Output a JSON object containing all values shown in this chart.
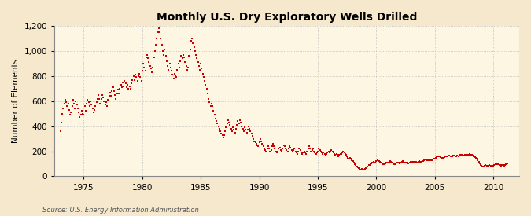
{
  "title": "Monthly U.S. Dry Exploratory Wells Drilled",
  "ylabel": "Number of Elements",
  "source": "Source: U.S. Energy Information Administration",
  "bg_color": "#f5e8cc",
  "plot_bg_color": "#fdf6e3",
  "dot_color": "#cc0000",
  "ylim": [
    0,
    1200
  ],
  "yticks": [
    0,
    200,
    400,
    600,
    800,
    1000,
    1200
  ],
  "xlim_start": 1972.5,
  "xlim_end": 2012.2,
  "xticks": [
    1975,
    1980,
    1985,
    1990,
    1995,
    2000,
    2005,
    2010
  ],
  "data": [
    [
      1973.0,
      360
    ],
    [
      1973.083,
      430
    ],
    [
      1973.167,
      500
    ],
    [
      1973.25,
      540
    ],
    [
      1973.333,
      580
    ],
    [
      1973.417,
      610
    ],
    [
      1973.5,
      590
    ],
    [
      1973.583,
      560
    ],
    [
      1973.667,
      580
    ],
    [
      1973.75,
      530
    ],
    [
      1973.833,
      490
    ],
    [
      1973.917,
      510
    ],
    [
      1974.0,
      560
    ],
    [
      1974.083,
      610
    ],
    [
      1974.167,
      580
    ],
    [
      1974.25,
      540
    ],
    [
      1974.333,
      600
    ],
    [
      1974.417,
      570
    ],
    [
      1974.5,
      540
    ],
    [
      1974.583,
      510
    ],
    [
      1974.667,
      470
    ],
    [
      1974.75,
      490
    ],
    [
      1974.833,
      520
    ],
    [
      1974.917,
      500
    ],
    [
      1975.0,
      490
    ],
    [
      1975.083,
      560
    ],
    [
      1975.167,
      520
    ],
    [
      1975.25,
      580
    ],
    [
      1975.333,
      610
    ],
    [
      1975.417,
      590
    ],
    [
      1975.5,
      560
    ],
    [
      1975.583,
      600
    ],
    [
      1975.667,
      570
    ],
    [
      1975.75,
      540
    ],
    [
      1975.833,
      510
    ],
    [
      1975.917,
      530
    ],
    [
      1976.0,
      560
    ],
    [
      1976.083,
      590
    ],
    [
      1976.167,
      620
    ],
    [
      1976.25,
      650
    ],
    [
      1976.333,
      620
    ],
    [
      1976.417,
      580
    ],
    [
      1976.5,
      620
    ],
    [
      1976.583,
      650
    ],
    [
      1976.667,
      630
    ],
    [
      1976.75,
      600
    ],
    [
      1976.833,
      570
    ],
    [
      1976.917,
      590
    ],
    [
      1977.0,
      560
    ],
    [
      1977.083,
      610
    ],
    [
      1977.167,
      640
    ],
    [
      1977.25,
      670
    ],
    [
      1977.333,
      640
    ],
    [
      1977.417,
      680
    ],
    [
      1977.5,
      710
    ],
    [
      1977.583,
      680
    ],
    [
      1977.667,
      650
    ],
    [
      1977.75,
      620
    ],
    [
      1977.833,
      660
    ],
    [
      1977.917,
      690
    ],
    [
      1978.0,
      660
    ],
    [
      1978.083,
      700
    ],
    [
      1978.167,
      730
    ],
    [
      1978.25,
      710
    ],
    [
      1978.333,
      750
    ],
    [
      1978.417,
      720
    ],
    [
      1978.5,
      760
    ],
    [
      1978.583,
      740
    ],
    [
      1978.667,
      710
    ],
    [
      1978.75,
      730
    ],
    [
      1978.833,
      700
    ],
    [
      1978.917,
      720
    ],
    [
      1979.0,
      700
    ],
    [
      1979.083,
      740
    ],
    [
      1979.167,
      770
    ],
    [
      1979.25,
      800
    ],
    [
      1979.333,
      770
    ],
    [
      1979.417,
      810
    ],
    [
      1979.5,
      790
    ],
    [
      1979.583,
      760
    ],
    [
      1979.667,
      800
    ],
    [
      1979.75,
      820
    ],
    [
      1979.833,
      790
    ],
    [
      1979.917,
      760
    ],
    [
      1980.0,
      840
    ],
    [
      1980.083,
      900
    ],
    [
      1980.167,
      870
    ],
    [
      1980.25,
      840
    ],
    [
      1980.333,
      950
    ],
    [
      1980.417,
      970
    ],
    [
      1980.5,
      940
    ],
    [
      1980.583,
      910
    ],
    [
      1980.667,
      880
    ],
    [
      1980.75,
      860
    ],
    [
      1980.833,
      830
    ],
    [
      1980.917,
      870
    ],
    [
      1981.0,
      950
    ],
    [
      1981.083,
      1000
    ],
    [
      1981.167,
      1050
    ],
    [
      1981.25,
      1100
    ],
    [
      1981.333,
      1150
    ],
    [
      1981.417,
      1180
    ],
    [
      1981.5,
      1150
    ],
    [
      1981.583,
      1100
    ],
    [
      1981.667,
      1050
    ],
    [
      1981.75,
      1000
    ],
    [
      1981.833,
      970
    ],
    [
      1981.917,
      1010
    ],
    [
      1982.0,
      960
    ],
    [
      1982.083,
      920
    ],
    [
      1982.167,
      880
    ],
    [
      1982.25,
      850
    ],
    [
      1982.333,
      900
    ],
    [
      1982.417,
      870
    ],
    [
      1982.5,
      840
    ],
    [
      1982.583,
      810
    ],
    [
      1982.667,
      780
    ],
    [
      1982.75,
      820
    ],
    [
      1982.833,
      800
    ],
    [
      1982.917,
      790
    ],
    [
      1983.0,
      850
    ],
    [
      1983.083,
      900
    ],
    [
      1983.167,
      870
    ],
    [
      1983.25,
      920
    ],
    [
      1983.333,
      960
    ],
    [
      1983.417,
      940
    ],
    [
      1983.5,
      970
    ],
    [
      1983.583,
      950
    ],
    [
      1983.667,
      910
    ],
    [
      1983.75,
      880
    ],
    [
      1983.833,
      850
    ],
    [
      1983.917,
      870
    ],
    [
      1984.0,
      960
    ],
    [
      1984.083,
      1010
    ],
    [
      1984.167,
      1080
    ],
    [
      1984.25,
      1100
    ],
    [
      1984.333,
      1060
    ],
    [
      1984.417,
      1030
    ],
    [
      1984.5,
      1000
    ],
    [
      1984.583,
      970
    ],
    [
      1984.667,
      940
    ],
    [
      1984.75,
      910
    ],
    [
      1984.833,
      880
    ],
    [
      1984.917,
      850
    ],
    [
      1985.0,
      900
    ],
    [
      1985.083,
      860
    ],
    [
      1985.167,
      820
    ],
    [
      1985.25,
      790
    ],
    [
      1985.333,
      760
    ],
    [
      1985.417,
      730
    ],
    [
      1985.5,
      700
    ],
    [
      1985.583,
      660
    ],
    [
      1985.667,
      620
    ],
    [
      1985.75,
      590
    ],
    [
      1985.833,
      560
    ],
    [
      1985.917,
      580
    ],
    [
      1986.0,
      560
    ],
    [
      1986.083,
      520
    ],
    [
      1986.167,
      490
    ],
    [
      1986.25,
      460
    ],
    [
      1986.333,
      440
    ],
    [
      1986.417,
      420
    ],
    [
      1986.5,
      400
    ],
    [
      1986.583,
      380
    ],
    [
      1986.667,
      360
    ],
    [
      1986.75,
      340
    ],
    [
      1986.833,
      330
    ],
    [
      1986.917,
      310
    ],
    [
      1987.0,
      330
    ],
    [
      1987.083,
      360
    ],
    [
      1987.167,
      390
    ],
    [
      1987.25,
      420
    ],
    [
      1987.333,
      450
    ],
    [
      1987.417,
      430
    ],
    [
      1987.5,
      410
    ],
    [
      1987.583,
      380
    ],
    [
      1987.667,
      360
    ],
    [
      1987.75,
      390
    ],
    [
      1987.833,
      370
    ],
    [
      1987.917,
      350
    ],
    [
      1988.0,
      380
    ],
    [
      1988.083,
      410
    ],
    [
      1988.167,
      440
    ],
    [
      1988.25,
      420
    ],
    [
      1988.333,
      450
    ],
    [
      1988.417,
      430
    ],
    [
      1988.5,
      400
    ],
    [
      1988.583,
      380
    ],
    [
      1988.667,
      360
    ],
    [
      1988.75,
      390
    ],
    [
      1988.833,
      370
    ],
    [
      1988.917,
      350
    ],
    [
      1989.0,
      370
    ],
    [
      1989.083,
      400
    ],
    [
      1989.167,
      380
    ],
    [
      1989.25,
      360
    ],
    [
      1989.333,
      340
    ],
    [
      1989.417,
      320
    ],
    [
      1989.5,
      300
    ],
    [
      1989.583,
      280
    ],
    [
      1989.667,
      270
    ],
    [
      1989.75,
      260
    ],
    [
      1989.833,
      250
    ],
    [
      1989.917,
      240
    ],
    [
      1990.0,
      270
    ],
    [
      1990.083,
      300
    ],
    [
      1990.167,
      280
    ],
    [
      1990.25,
      260
    ],
    [
      1990.333,
      240
    ],
    [
      1990.417,
      220
    ],
    [
      1990.5,
      210
    ],
    [
      1990.583,
      200
    ],
    [
      1990.667,
      220
    ],
    [
      1990.75,
      240
    ],
    [
      1990.833,
      220
    ],
    [
      1990.917,
      200
    ],
    [
      1991.0,
      210
    ],
    [
      1991.083,
      240
    ],
    [
      1991.167,
      260
    ],
    [
      1991.25,
      240
    ],
    [
      1991.333,
      220
    ],
    [
      1991.417,
      200
    ],
    [
      1991.5,
      190
    ],
    [
      1991.583,
      200
    ],
    [
      1991.667,
      220
    ],
    [
      1991.75,
      230
    ],
    [
      1991.833,
      210
    ],
    [
      1991.917,
      200
    ],
    [
      1992.0,
      220
    ],
    [
      1992.083,
      250
    ],
    [
      1992.167,
      240
    ],
    [
      1992.25,
      220
    ],
    [
      1992.333,
      210
    ],
    [
      1992.417,
      200
    ],
    [
      1992.5,
      220
    ],
    [
      1992.583,
      240
    ],
    [
      1992.667,
      230
    ],
    [
      1992.75,
      210
    ],
    [
      1992.833,
      200
    ],
    [
      1992.917,
      210
    ],
    [
      1993.0,
      220
    ],
    [
      1993.083,
      200
    ],
    [
      1993.167,
      190
    ],
    [
      1993.25,
      180
    ],
    [
      1993.333,
      200
    ],
    [
      1993.417,
      220
    ],
    [
      1993.5,
      210
    ],
    [
      1993.583,
      190
    ],
    [
      1993.667,
      180
    ],
    [
      1993.75,
      190
    ],
    [
      1993.833,
      200
    ],
    [
      1993.917,
      190
    ],
    [
      1994.0,
      180
    ],
    [
      1994.083,
      200
    ],
    [
      1994.167,
      220
    ],
    [
      1994.25,
      240
    ],
    [
      1994.333,
      220
    ],
    [
      1994.417,
      200
    ],
    [
      1994.5,
      210
    ],
    [
      1994.583,
      220
    ],
    [
      1994.667,
      200
    ],
    [
      1994.75,
      190
    ],
    [
      1994.833,
      180
    ],
    [
      1994.917,
      190
    ],
    [
      1995.0,
      200
    ],
    [
      1995.083,
      220
    ],
    [
      1995.167,
      210
    ],
    [
      1995.25,
      200
    ],
    [
      1995.333,
      190
    ],
    [
      1995.417,
      180
    ],
    [
      1995.5,
      190
    ],
    [
      1995.583,
      180
    ],
    [
      1995.667,
      170
    ],
    [
      1995.75,
      180
    ],
    [
      1995.833,
      190
    ],
    [
      1995.917,
      200
    ],
    [
      1996.0,
      190
    ],
    [
      1996.083,
      200
    ],
    [
      1996.167,
      210
    ],
    [
      1996.25,
      200
    ],
    [
      1996.333,
      190
    ],
    [
      1996.417,
      180
    ],
    [
      1996.5,
      170
    ],
    [
      1996.583,
      180
    ],
    [
      1996.667,
      170
    ],
    [
      1996.75,
      160
    ],
    [
      1996.833,
      170
    ],
    [
      1996.917,
      180
    ],
    [
      1997.0,
      180
    ],
    [
      1997.083,
      190
    ],
    [
      1997.167,
      200
    ],
    [
      1997.25,
      190
    ],
    [
      1997.333,
      180
    ],
    [
      1997.417,
      170
    ],
    [
      1997.5,
      160
    ],
    [
      1997.583,
      150
    ],
    [
      1997.667,
      140
    ],
    [
      1997.75,
      150
    ],
    [
      1997.833,
      140
    ],
    [
      1997.917,
      130
    ],
    [
      1998.0,
      120
    ],
    [
      1998.083,
      110
    ],
    [
      1998.167,
      100
    ],
    [
      1998.25,
      90
    ],
    [
      1998.333,
      80
    ],
    [
      1998.417,
      70
    ],
    [
      1998.5,
      65
    ],
    [
      1998.583,
      58
    ],
    [
      1998.667,
      55
    ],
    [
      1998.75,
      60
    ],
    [
      1998.833,
      58
    ],
    [
      1998.917,
      55
    ],
    [
      1999.0,
      60
    ],
    [
      1999.083,
      68
    ],
    [
      1999.167,
      75
    ],
    [
      1999.25,
      80
    ],
    [
      1999.333,
      88
    ],
    [
      1999.417,
      92
    ],
    [
      1999.5,
      98
    ],
    [
      1999.583,
      105
    ],
    [
      1999.667,
      110
    ],
    [
      1999.75,
      115
    ],
    [
      1999.833,
      108
    ],
    [
      1999.917,
      112
    ],
    [
      2000.0,
      120
    ],
    [
      2000.083,
      130
    ],
    [
      2000.167,
      125
    ],
    [
      2000.25,
      120
    ],
    [
      2000.333,
      115
    ],
    [
      2000.417,
      110
    ],
    [
      2000.5,
      105
    ],
    [
      2000.583,
      100
    ],
    [
      2000.667,
      98
    ],
    [
      2000.75,
      102
    ],
    [
      2000.833,
      108
    ],
    [
      2000.917,
      112
    ],
    [
      2001.0,
      110
    ],
    [
      2001.083,
      115
    ],
    [
      2001.167,
      120
    ],
    [
      2001.25,
      115
    ],
    [
      2001.333,
      110
    ],
    [
      2001.417,
      105
    ],
    [
      2001.5,
      100
    ],
    [
      2001.583,
      98
    ],
    [
      2001.667,
      102
    ],
    [
      2001.75,
      108
    ],
    [
      2001.833,
      112
    ],
    [
      2001.917,
      108
    ],
    [
      2002.0,
      105
    ],
    [
      2002.083,
      110
    ],
    [
      2002.167,
      115
    ],
    [
      2002.25,
      120
    ],
    [
      2002.333,
      115
    ],
    [
      2002.417,
      110
    ],
    [
      2002.5,
      108
    ],
    [
      2002.583,
      112
    ],
    [
      2002.667,
      108
    ],
    [
      2002.75,
      105
    ],
    [
      2002.833,
      110
    ],
    [
      2002.917,
      115
    ],
    [
      2003.0,
      112
    ],
    [
      2003.083,
      118
    ],
    [
      2003.167,
      115
    ],
    [
      2003.25,
      112
    ],
    [
      2003.333,
      118
    ],
    [
      2003.417,
      115
    ],
    [
      2003.5,
      112
    ],
    [
      2003.583,
      118
    ],
    [
      2003.667,
      122
    ],
    [
      2003.75,
      118
    ],
    [
      2003.833,
      115
    ],
    [
      2003.917,
      120
    ],
    [
      2004.0,
      125
    ],
    [
      2004.083,
      130
    ],
    [
      2004.167,
      135
    ],
    [
      2004.25,
      130
    ],
    [
      2004.333,
      128
    ],
    [
      2004.417,
      132
    ],
    [
      2004.5,
      128
    ],
    [
      2004.583,
      135
    ],
    [
      2004.667,
      130
    ],
    [
      2004.75,
      128
    ],
    [
      2004.833,
      132
    ],
    [
      2004.917,
      138
    ],
    [
      2005.0,
      142
    ],
    [
      2005.083,
      148
    ],
    [
      2005.167,
      152
    ],
    [
      2005.25,
      158
    ],
    [
      2005.333,
      162
    ],
    [
      2005.417,
      158
    ],
    [
      2005.5,
      152
    ],
    [
      2005.583,
      148
    ],
    [
      2005.667,
      145
    ],
    [
      2005.75,
      150
    ],
    [
      2005.833,
      155
    ],
    [
      2005.917,
      160
    ],
    [
      2006.0,
      158
    ],
    [
      2006.083,
      162
    ],
    [
      2006.167,
      168
    ],
    [
      2006.25,
      165
    ],
    [
      2006.333,
      162
    ],
    [
      2006.417,
      158
    ],
    [
      2006.5,
      162
    ],
    [
      2006.583,
      168
    ],
    [
      2006.667,
      165
    ],
    [
      2006.75,
      162
    ],
    [
      2006.833,
      158
    ],
    [
      2006.917,
      165
    ],
    [
      2007.0,
      162
    ],
    [
      2007.083,
      168
    ],
    [
      2007.167,
      172
    ],
    [
      2007.25,
      175
    ],
    [
      2007.333,
      170
    ],
    [
      2007.417,
      168
    ],
    [
      2007.5,
      165
    ],
    [
      2007.583,
      170
    ],
    [
      2007.667,
      175
    ],
    [
      2007.75,
      172
    ],
    [
      2007.833,
      168
    ],
    [
      2007.917,
      175
    ],
    [
      2008.0,
      178
    ],
    [
      2008.083,
      175
    ],
    [
      2008.167,
      170
    ],
    [
      2008.25,
      165
    ],
    [
      2008.333,
      160
    ],
    [
      2008.417,
      155
    ],
    [
      2008.5,
      148
    ],
    [
      2008.583,
      140
    ],
    [
      2008.667,
      128
    ],
    [
      2008.75,
      115
    ],
    [
      2008.833,
      102
    ],
    [
      2008.917,
      92
    ],
    [
      2009.0,
      85
    ],
    [
      2009.083,
      80
    ],
    [
      2009.167,
      78
    ],
    [
      2009.25,
      82
    ],
    [
      2009.333,
      88
    ],
    [
      2009.417,
      85
    ],
    [
      2009.5,
      82
    ],
    [
      2009.583,
      85
    ],
    [
      2009.667,
      88
    ],
    [
      2009.75,
      85
    ],
    [
      2009.833,
      82
    ],
    [
      2009.917,
      80
    ],
    [
      2010.0,
      85
    ],
    [
      2010.083,
      90
    ],
    [
      2010.167,
      95
    ],
    [
      2010.25,
      100
    ],
    [
      2010.333,
      98
    ],
    [
      2010.417,
      95
    ],
    [
      2010.5,
      92
    ],
    [
      2010.583,
      88
    ],
    [
      2010.667,
      85
    ],
    [
      2010.75,
      90
    ],
    [
      2010.833,
      88
    ],
    [
      2010.917,
      85
    ],
    [
      2011.0,
      92
    ],
    [
      2011.083,
      98
    ],
    [
      2011.167,
      102
    ]
  ]
}
